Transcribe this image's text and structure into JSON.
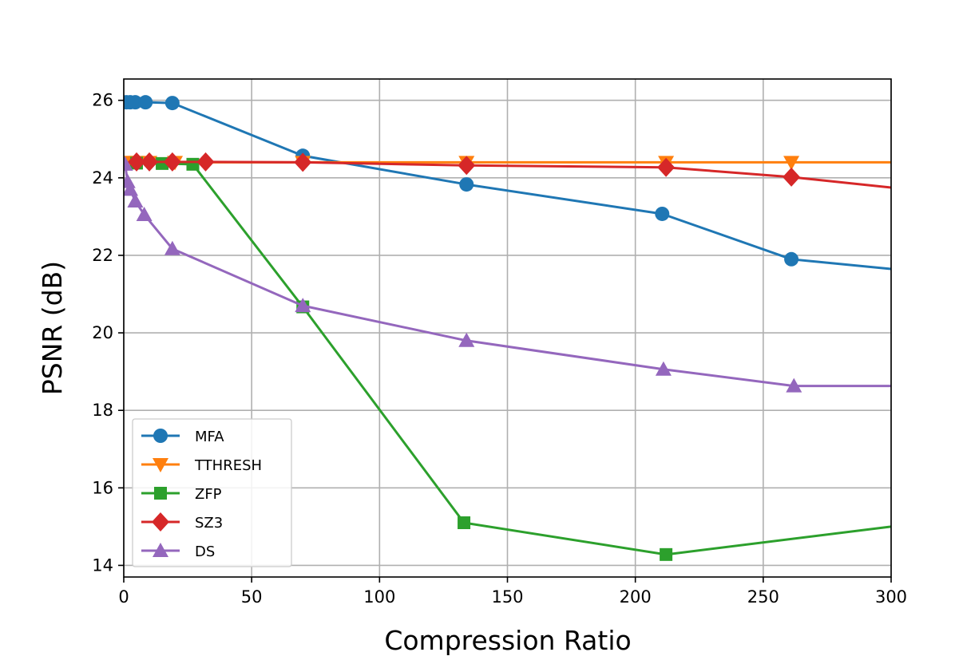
{
  "chart_data": {
    "type": "line",
    "title": "",
    "xlabel": "Compression Ratio",
    "ylabel": "PSNR (dB)",
    "xlim": [
      0,
      300
    ],
    "ylim": [
      13.7,
      26.55
    ],
    "xticks": [
      0,
      50,
      100,
      150,
      200,
      250,
      300
    ],
    "yticks": [
      14,
      16,
      18,
      20,
      22,
      24,
      26
    ],
    "grid": true,
    "legend_position": "lower-left",
    "series": [
      {
        "name": "MFA",
        "color": "#1f77b4",
        "marker": "circle",
        "points": [
          [
            1,
            25.95
          ],
          [
            2.5,
            25.95
          ],
          [
            4.5,
            25.95
          ],
          [
            8.5,
            25.95
          ],
          [
            19,
            25.93
          ],
          [
            70,
            24.57
          ],
          [
            134,
            23.83
          ],
          [
            210.5,
            23.07
          ],
          [
            261,
            21.9
          ],
          [
            300,
            21.65
          ]
        ],
        "marker_count": 9
      },
      {
        "name": "TTHRESH",
        "color": "#ff7f0e",
        "marker": "triangle-down",
        "points": [
          [
            1,
            24.4
          ],
          [
            3,
            24.4
          ],
          [
            5,
            24.4
          ],
          [
            10,
            24.4
          ],
          [
            20,
            24.4
          ],
          [
            70,
            24.4
          ],
          [
            134,
            24.4
          ],
          [
            212,
            24.4
          ],
          [
            261,
            24.4
          ],
          [
            300,
            24.4
          ]
        ],
        "marker_count": 9
      },
      {
        "name": "ZFP",
        "color": "#2ca02c",
        "marker": "square",
        "points": [
          [
            5,
            24.38
          ],
          [
            15,
            24.37
          ],
          [
            27,
            24.35
          ],
          [
            70,
            20.67
          ],
          [
            133,
            15.1
          ],
          [
            212,
            14.28
          ],
          [
            300,
            15.0
          ]
        ],
        "marker_count": 6
      },
      {
        "name": "SZ3",
        "color": "#d62728",
        "marker": "diamond",
        "points": [
          [
            5,
            24.41
          ],
          [
            10,
            24.41
          ],
          [
            19,
            24.41
          ],
          [
            32,
            24.41
          ],
          [
            70,
            24.4
          ],
          [
            134,
            24.32
          ],
          [
            212,
            24.27
          ],
          [
            261,
            24.02
          ],
          [
            300,
            23.75
          ]
        ],
        "marker_count": 8
      },
      {
        "name": "DS",
        "color": "#9467bd",
        "marker": "triangle-up",
        "points": [
          [
            0.5,
            24.35
          ],
          [
            1.5,
            23.9
          ],
          [
            2.5,
            23.7
          ],
          [
            4.5,
            23.4
          ],
          [
            8,
            23.05
          ],
          [
            19,
            22.17
          ],
          [
            70,
            20.7
          ],
          [
            134,
            19.8
          ],
          [
            211,
            19.06
          ],
          [
            262,
            18.63
          ],
          [
            300,
            18.63
          ]
        ],
        "marker_count": 10
      }
    ]
  }
}
